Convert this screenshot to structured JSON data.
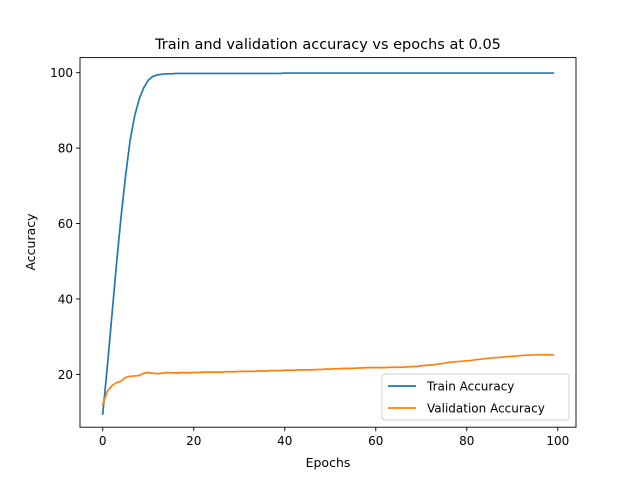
{
  "chart_data": {
    "type": "line",
    "title": "Train and validation accuracy vs epochs at 0.05",
    "xlabel": "Epochs",
    "ylabel": "Accuracy",
    "xlim": [
      -5.0,
      104.0
    ],
    "ylim": [
      6.0,
      104.0
    ],
    "xticks": [
      0,
      20,
      40,
      60,
      80,
      100
    ],
    "yticks": [
      20,
      40,
      60,
      80,
      100
    ],
    "grid": false,
    "legend_position": "lower-right",
    "series": [
      {
        "name": "Train Accuracy",
        "color": "#1f77b4",
        "x": [
          0,
          1,
          2,
          3,
          4,
          5,
          6,
          7,
          8,
          9,
          10,
          11,
          12,
          13,
          14,
          15,
          16,
          17,
          18,
          19,
          20,
          21,
          22,
          23,
          24,
          25,
          26,
          27,
          28,
          29,
          30,
          31,
          32,
          33,
          34,
          35,
          36,
          37,
          38,
          39,
          40,
          41,
          42,
          43,
          44,
          45,
          46,
          47,
          48,
          49,
          50,
          51,
          52,
          53,
          54,
          55,
          56,
          57,
          58,
          59,
          60,
          61,
          62,
          63,
          64,
          65,
          66,
          67,
          68,
          69,
          70,
          71,
          72,
          73,
          74,
          75,
          76,
          77,
          78,
          79,
          80,
          81,
          82,
          83,
          84,
          85,
          86,
          87,
          88,
          89,
          90,
          91,
          92,
          93,
          94,
          95,
          96,
          97,
          98,
          99
        ],
        "y": [
          9.5,
          22.0,
          35.5,
          49.0,
          61.5,
          72.5,
          82.0,
          88.5,
          93.0,
          96.0,
          98.0,
          99.0,
          99.4,
          99.6,
          99.7,
          99.7,
          99.8,
          99.8,
          99.8,
          99.8,
          99.8,
          99.8,
          99.8,
          99.8,
          99.8,
          99.8,
          99.8,
          99.8,
          99.8,
          99.8,
          99.8,
          99.8,
          99.8,
          99.8,
          99.8,
          99.8,
          99.8,
          99.8,
          99.8,
          99.8,
          99.9,
          99.9,
          99.9,
          99.9,
          99.9,
          99.9,
          99.9,
          99.9,
          99.9,
          99.9,
          99.9,
          99.9,
          99.9,
          99.9,
          99.9,
          99.9,
          99.9,
          99.9,
          99.9,
          99.9,
          99.9,
          99.9,
          99.9,
          99.9,
          99.9,
          99.9,
          99.9,
          99.9,
          99.9,
          99.9,
          99.9,
          99.9,
          99.9,
          99.9,
          99.9,
          99.9,
          99.9,
          99.9,
          99.9,
          99.9,
          99.9,
          99.9,
          99.9,
          99.9,
          99.9,
          99.9,
          99.9,
          99.9,
          99.9,
          99.9,
          99.9,
          99.9,
          99.9,
          99.9,
          99.9,
          99.9,
          99.9,
          99.9,
          99.9,
          99.9
        ]
      },
      {
        "name": "Validation Accuracy",
        "color": "#ff7f0e",
        "x": [
          0,
          1,
          2,
          3,
          4,
          5,
          6,
          7,
          8,
          9,
          10,
          11,
          12,
          13,
          14,
          15,
          16,
          17,
          18,
          19,
          20,
          21,
          22,
          23,
          24,
          25,
          26,
          27,
          28,
          29,
          30,
          31,
          32,
          33,
          34,
          35,
          36,
          37,
          38,
          39,
          40,
          41,
          42,
          43,
          44,
          45,
          46,
          47,
          48,
          49,
          50,
          51,
          52,
          53,
          54,
          55,
          56,
          57,
          58,
          59,
          60,
          61,
          62,
          63,
          64,
          65,
          66,
          67,
          68,
          69,
          70,
          71,
          72,
          73,
          74,
          75,
          76,
          77,
          78,
          79,
          80,
          81,
          82,
          83,
          84,
          85,
          86,
          87,
          88,
          89,
          90,
          91,
          92,
          93,
          94,
          95,
          96,
          97,
          98,
          99
        ],
        "y": [
          12.0,
          15.5,
          17.0,
          17.8,
          18.2,
          19.2,
          19.5,
          19.6,
          19.7,
          20.3,
          20.5,
          20.3,
          20.2,
          20.3,
          20.5,
          20.4,
          20.4,
          20.4,
          20.5,
          20.4,
          20.5,
          20.5,
          20.6,
          20.6,
          20.6,
          20.6,
          20.6,
          20.7,
          20.7,
          20.7,
          20.8,
          20.8,
          20.8,
          20.8,
          20.9,
          20.9,
          20.9,
          21.0,
          21.0,
          21.0,
          21.1,
          21.1,
          21.1,
          21.2,
          21.2,
          21.2,
          21.2,
          21.3,
          21.3,
          21.4,
          21.4,
          21.5,
          21.5,
          21.6,
          21.6,
          21.6,
          21.7,
          21.7,
          21.8,
          21.8,
          21.8,
          21.8,
          21.8,
          21.9,
          21.9,
          21.9,
          21.9,
          22.0,
          22.1,
          22.1,
          22.3,
          22.4,
          22.5,
          22.6,
          22.8,
          22.9,
          23.2,
          23.3,
          23.4,
          23.5,
          23.6,
          23.7,
          23.9,
          24.0,
          24.2,
          24.3,
          24.4,
          24.5,
          24.6,
          24.7,
          24.8,
          24.9,
          25.0,
          25.1,
          25.1,
          25.2,
          25.2,
          25.2,
          25.2,
          25.2
        ]
      }
    ]
  }
}
